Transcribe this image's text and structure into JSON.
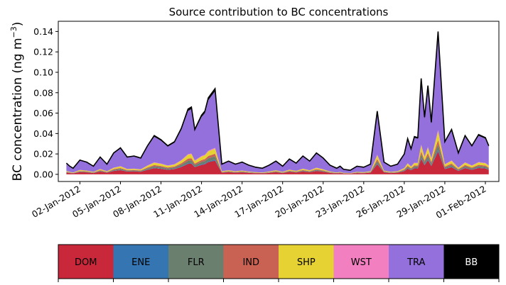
{
  "chart_data": {
    "type": "area",
    "stacked": true,
    "title": "Source contribution to BC concentrations",
    "xlabel": "",
    "ylabel": "BC concentration (ng m",
    "ylabel_superscript": "−3",
    "ylabel_close": ")",
    "x_start": "2012-01-01",
    "x_step_days": 0.25,
    "x_ticks": [
      "02-Jan-2012",
      "05-Jan-2012",
      "08-Jan-2012",
      "11-Jan-2012",
      "14-Jan-2012",
      "17-Jan-2012",
      "20-Jan-2012",
      "23-Jan-2012",
      "26-Jan-2012",
      "29-Jan-2012",
      "01-Feb-2012"
    ],
    "x_tick_days": [
      1,
      4,
      7,
      10,
      13,
      16,
      19,
      22,
      25,
      28,
      31
    ],
    "xlim_days": [
      -0.6,
      32.0
    ],
    "ylim": [
      -0.007,
      0.15
    ],
    "y_ticks": [
      "0.00",
      "0.02",
      "0.04",
      "0.06",
      "0.08",
      "0.10",
      "0.12",
      "0.14"
    ],
    "y_tick_values": [
      0,
      0.02,
      0.04,
      0.06,
      0.08,
      0.1,
      0.12,
      0.14
    ],
    "total_key_days": [
      0,
      0.25,
      0.5,
      0.75,
      1,
      1.5,
      2,
      2.5,
      3,
      3.5,
      4,
      4.5,
      5,
      5.5,
      6,
      6.5,
      7,
      7.5,
      8,
      8.5,
      9,
      9.25,
      9.5,
      10,
      10.25,
      10.5,
      11,
      11.5,
      12,
      12.5,
      13,
      13.5,
      14,
      14.5,
      15,
      15.5,
      16,
      16.5,
      17,
      17.5,
      18,
      18.5,
      19,
      19.5,
      20,
      20.25,
      20.5,
      21,
      21.5,
      22,
      22.5,
      23,
      23.5,
      24,
      24.5,
      25,
      25.25,
      25.5,
      25.75,
      26,
      26.25,
      26.5,
      26.75,
      27,
      27.5,
      28,
      28.5,
      29,
      29.5,
      30,
      30.5,
      31,
      31.25
    ],
    "total_key_values": [
      0.011,
      0.008,
      0.006,
      0.01,
      0.014,
      0.012,
      0.008,
      0.017,
      0.01,
      0.021,
      0.026,
      0.017,
      0.018,
      0.016,
      0.028,
      0.038,
      0.034,
      0.028,
      0.032,
      0.045,
      0.064,
      0.066,
      0.044,
      0.058,
      0.062,
      0.075,
      0.084,
      0.01,
      0.013,
      0.01,
      0.012,
      0.009,
      0.007,
      0.006,
      0.009,
      0.013,
      0.008,
      0.015,
      0.011,
      0.018,
      0.013,
      0.021,
      0.016,
      0.009,
      0.006,
      0.008,
      0.005,
      0.004,
      0.008,
      0.007,
      0.01,
      0.062,
      0.012,
      0.008,
      0.01,
      0.02,
      0.035,
      0.025,
      0.037,
      0.036,
      0.094,
      0.056,
      0.087,
      0.051,
      0.14,
      0.032,
      0.044,
      0.021,
      0.038,
      0.028,
      0.039,
      0.036,
      0.028
    ],
    "series": [
      {
        "name": "DOM",
        "color": "#c8283a",
        "fraction": 0.16
      },
      {
        "name": "ENE",
        "color": "#3575b2",
        "fraction": 0.01
      },
      {
        "name": "FLR",
        "color": "#6b7f6f",
        "fraction": 0.04
      },
      {
        "name": "IND",
        "color": "#c96253",
        "fraction": 0.03
      },
      {
        "name": "SHP",
        "color": "#e6d232",
        "fraction": 0.06
      },
      {
        "name": "WST",
        "color": "#f27fbf",
        "fraction": 0.01
      },
      {
        "name": "TRA",
        "color": "#9370db",
        "fraction": 0.66
      },
      {
        "name": "BB",
        "color": "#000000",
        "fraction": 0.03
      }
    ],
    "legend_label_colors": [
      "#000000",
      "#000000",
      "#000000",
      "#000000",
      "#000000",
      "#000000",
      "#000000",
      "#ffffff"
    ],
    "legend_position": "bottom"
  }
}
